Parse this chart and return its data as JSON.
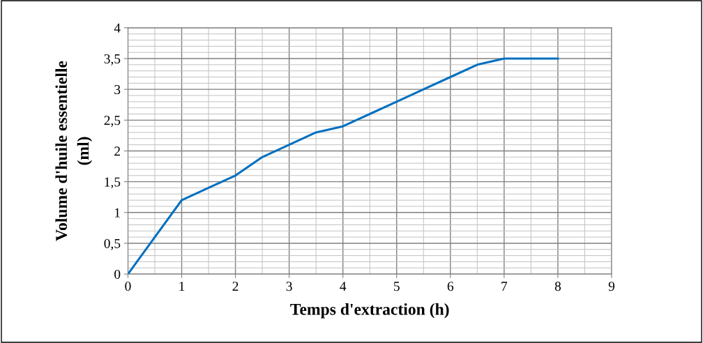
{
  "chart_data": {
    "type": "line",
    "xlabel": "Temps d'extraction (h)",
    "ylabel": "Volume d'huile essentielle\n(ml)",
    "x": [
      0,
      0.5,
      1,
      1.5,
      2,
      2.5,
      3,
      3.5,
      4,
      4.5,
      5,
      5.5,
      6,
      6.5,
      7,
      7.5,
      8
    ],
    "series": [
      {
        "color": "#0070c0",
        "values": [
          0,
          0.6,
          1.2,
          1.4,
          1.6,
          1.9,
          2.1,
          2.3,
          2.4,
          2.6,
          2.8,
          3.0,
          3.2,
          3.4,
          3.5,
          3.5,
          3.5
        ]
      }
    ],
    "xlim": [
      0,
      9
    ],
    "xticks": [
      0,
      1,
      2,
      3,
      4,
      5,
      6,
      7,
      8,
      9
    ],
    "ylim": [
      0,
      4
    ],
    "yticks": [
      0,
      {
        "value": 0.5,
        "label": "0,5"
      },
      1,
      {
        "value": 1.5,
        "label": "1,5"
      },
      2,
      {
        "value": 2.5,
        "label": "2,5"
      },
      3,
      {
        "value": 3.5,
        "label": "3,5"
      },
      4
    ],
    "grid": true,
    "marker": "none",
    "line_style": "solid",
    "legend": false
  }
}
